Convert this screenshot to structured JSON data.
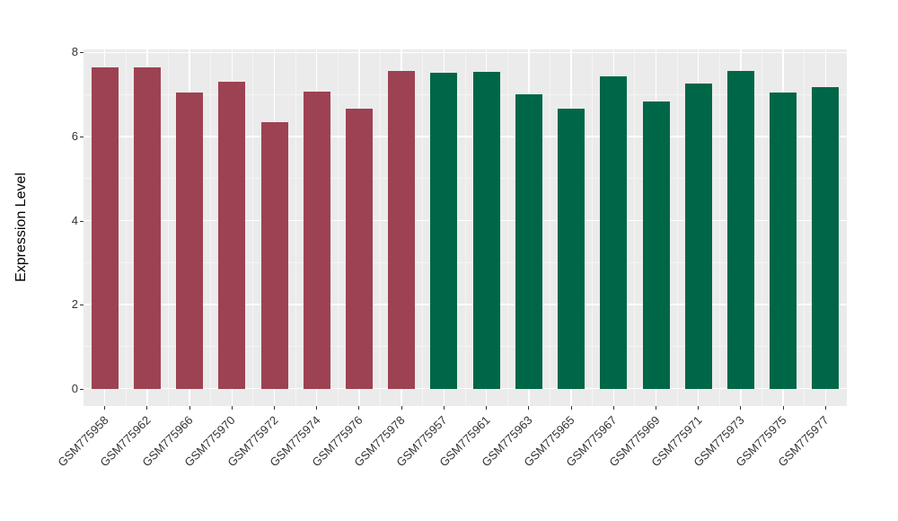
{
  "chart_data": {
    "type": "bar",
    "title": "",
    "xlabel": "",
    "ylabel": "Expression Level",
    "ylim": [
      0,
      8
    ],
    "yticks": [
      0,
      2,
      4,
      6,
      8
    ],
    "yticks_minor": [
      1,
      3,
      5,
      7
    ],
    "grid": "on",
    "legend": "none",
    "series": [
      {
        "name": "group-red",
        "color": "#9D4252",
        "bars": [
          {
            "label": "GSM775958",
            "value": 7.64
          },
          {
            "label": "GSM775962",
            "value": 7.64
          },
          {
            "label": "GSM775966",
            "value": 7.05
          },
          {
            "label": "GSM775970",
            "value": 7.31
          },
          {
            "label": "GSM775972",
            "value": 6.35
          },
          {
            "label": "GSM775974",
            "value": 7.07
          },
          {
            "label": "GSM775976",
            "value": 6.67
          },
          {
            "label": "GSM775978",
            "value": 7.55
          }
        ]
      },
      {
        "name": "group-green",
        "color": "#006648",
        "bars": [
          {
            "label": "GSM775957",
            "value": 7.52
          },
          {
            "label": "GSM775961",
            "value": 7.54
          },
          {
            "label": "GSM775963",
            "value": 7.01
          },
          {
            "label": "GSM775965",
            "value": 6.67
          },
          {
            "label": "GSM775967",
            "value": 7.42
          },
          {
            "label": "GSM775969",
            "value": 6.84
          },
          {
            "label": "GSM775971",
            "value": 7.26
          },
          {
            "label": "GSM775973",
            "value": 7.56
          },
          {
            "label": "GSM775975",
            "value": 7.05
          },
          {
            "label": "GSM775977",
            "value": 7.18
          }
        ]
      }
    ]
  },
  "style": {
    "panel_bg": "#EBEBEB",
    "grid_major": "#FFFFFF",
    "grid_minor": "#F5F5F5",
    "tick_color": "#333333"
  }
}
